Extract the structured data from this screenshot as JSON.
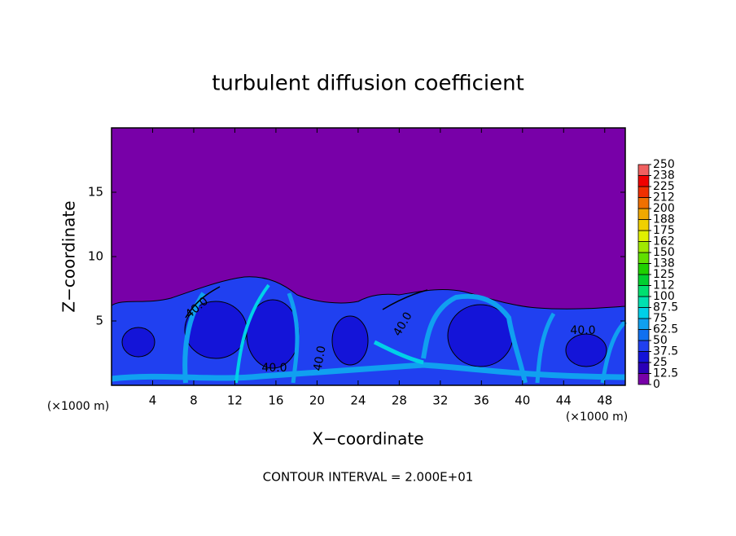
{
  "chart_data": {
    "type": "contour",
    "title": "turbulent diffusion coefficient",
    "xlabel": "X−coordinate",
    "ylabel": "Z−coordinate",
    "x_unit": "(×1000 m)",
    "x_unit_right": "(×1000 m)",
    "footnote": "CONTOUR INTERVAL = 2.000E+01",
    "xlim": [
      0,
      50
    ],
    "ylim": [
      0,
      20
    ],
    "xticks": [
      4,
      8,
      12,
      16,
      20,
      24,
      28,
      32,
      36,
      40,
      44,
      48
    ],
    "yticks": [
      5,
      10,
      15
    ],
    "colorbar_ticks": [
      0,
      12.5,
      25,
      37.5,
      50,
      62.5,
      75,
      87.5,
      100,
      112,
      125,
      138,
      150,
      162,
      175,
      188,
      200,
      212,
      225,
      238,
      250
    ],
    "colors": [
      "#7800a8",
      "#2a00b8",
      "#1414d8",
      "#2040f0",
      "#1070f0",
      "#10a0f0",
      "#00d0e8",
      "#00e0b0",
      "#00e070",
      "#00d030",
      "#20d000",
      "#60e000",
      "#a0e800",
      "#e0f000",
      "#f0d000",
      "#f0a800",
      "#f07000",
      "#f03000",
      "#f00000",
      "#f06060"
    ],
    "contour_labels": [
      "40.0",
      "40.0",
      "40.0",
      "40.0",
      "40.0"
    ]
  }
}
